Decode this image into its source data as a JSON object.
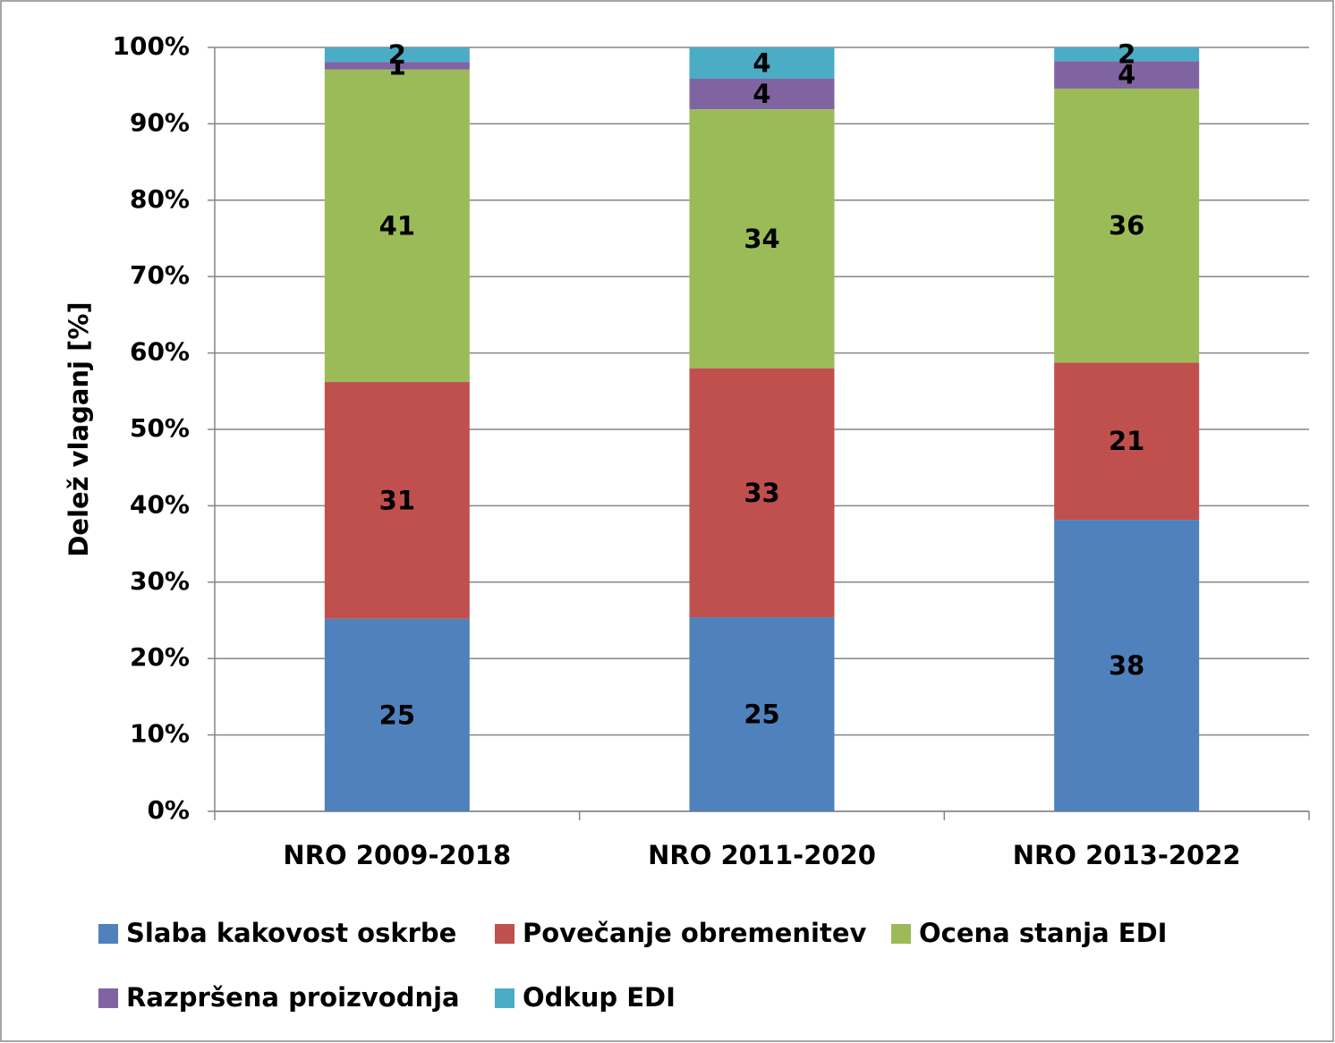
{
  "chart_data": {
    "type": "stacked_bar_percent",
    "y_label": "Delež vlaganj [%]",
    "categories": [
      "NRO 2009-2018",
      "NRO 2011-2020",
      "NRO 2013-2022"
    ],
    "series": [
      {
        "name": "Slaba kakovost oskrbe",
        "color": "#4f81bd",
        "values": [
          25.2,
          25.4,
          38.2
        ],
        "value_labels": [
          "25",
          "25",
          "38"
        ]
      },
      {
        "name": "Povečanje obremenitev",
        "color": "#c0504d",
        "values": [
          31.0,
          32.6,
          20.6
        ],
        "value_labels": [
          "31",
          "33",
          "21"
        ]
      },
      {
        "name": "Ocena stanja EDI",
        "color": "#9bbb59",
        "values": [
          40.9,
          33.9,
          35.9
        ],
        "value_labels": [
          "41",
          "34",
          "36"
        ]
      },
      {
        "name": "Razpršena proizvodnja",
        "color": "#8064a2",
        "values": [
          1.0,
          4.0,
          3.6
        ],
        "value_labels": [
          "1",
          "4",
          "4"
        ]
      },
      {
        "name": "Odkup EDI",
        "color": "#4bacc6",
        "values": [
          1.9,
          4.1,
          1.8
        ],
        "value_labels": [
          "2",
          "4",
          "2"
        ]
      }
    ],
    "ylim": [
      0,
      100
    ],
    "yticks": [
      {
        "value": 0,
        "label": "0%"
      },
      {
        "value": 10,
        "label": "10%"
      },
      {
        "value": 20,
        "label": "20%"
      },
      {
        "value": 30,
        "label": "30%"
      },
      {
        "value": 40,
        "label": "40%"
      },
      {
        "value": 50,
        "label": "50%"
      },
      {
        "value": 60,
        "label": "60%"
      },
      {
        "value": 70,
        "label": "70%"
      },
      {
        "value": 80,
        "label": "80%"
      },
      {
        "value": 90,
        "label": "90%"
      },
      {
        "value": 100,
        "label": "100%"
      }
    ],
    "grid": true,
    "legend": "bottom"
  }
}
